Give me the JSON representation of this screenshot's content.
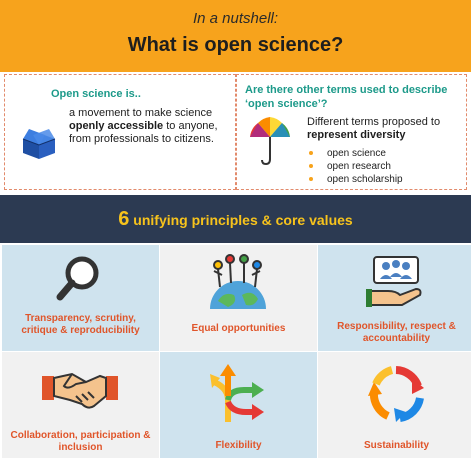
{
  "header": {
    "subtitle": "In a nutshell:",
    "title": "What is open science?"
  },
  "definition": {
    "title": "Open science is..",
    "text_pre": "a movement to make science ",
    "text_bold": "openly accessible",
    "text_post": " to anyone, from professionals to citizens."
  },
  "terms": {
    "title": "Are there other terms used to describe ‘open science’?",
    "text_pre": "Different terms proposed to ",
    "text_bold": "represent diversity",
    "items": [
      "open science",
      "open research",
      "open scholarship"
    ]
  },
  "principles": {
    "count": "6",
    "heading": " unifying principles & core values",
    "items": [
      {
        "label": "Transparency, scrutiny, critique & reproducibility",
        "icon": "magnifier-icon"
      },
      {
        "label": "Equal opportunities",
        "icon": "globe-people-icon"
      },
      {
        "label": "Responsibility, respect & accountability",
        "icon": "hand-group-icon"
      },
      {
        "label": "Collaboration, participation & inclusion",
        "icon": "handshake-icon"
      },
      {
        "label": "Flexibility",
        "icon": "branching-arrows-icon"
      },
      {
        "label": "Sustainability",
        "icon": "recycle-icon"
      }
    ]
  },
  "colors": {
    "accent": "#f7a31c",
    "band": "#2c3a52",
    "teal": "#1d9a8a",
    "label": "#e0552a"
  }
}
